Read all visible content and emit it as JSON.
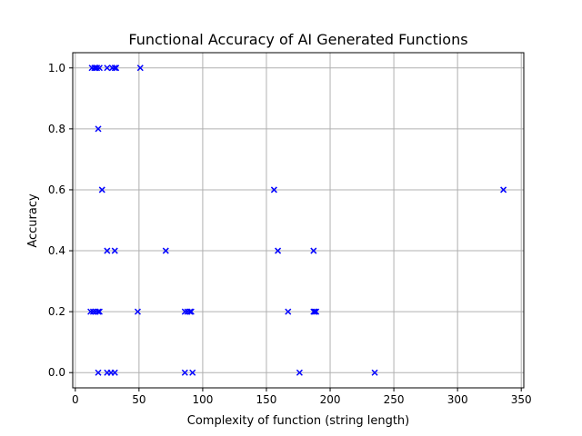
{
  "chart_data": {
    "type": "scatter",
    "title": "Functional Accuracy of AI Generated Functions",
    "xlabel": "Complexity of function (string length)",
    "ylabel": "Accuracy",
    "xlim": [
      -2,
      352
    ],
    "ylim": [
      -0.05,
      1.05
    ],
    "xticks": [
      0,
      50,
      100,
      150,
      200,
      250,
      300,
      350
    ],
    "yticks": [
      0.0,
      0.2,
      0.4,
      0.6,
      0.8,
      1.0
    ],
    "xtick_labels": [
      "0",
      "50",
      "100",
      "150",
      "200",
      "250",
      "300",
      "350"
    ],
    "ytick_labels": [
      "0.0",
      "0.2",
      "0.4",
      "0.6",
      "0.8",
      "1.0"
    ],
    "grid": true,
    "marker": "x",
    "color": "#0000ff",
    "points": [
      {
        "x": 13,
        "y": 1.0
      },
      {
        "x": 15,
        "y": 1.0
      },
      {
        "x": 16,
        "y": 1.0
      },
      {
        "x": 17,
        "y": 1.0
      },
      {
        "x": 19,
        "y": 1.0
      },
      {
        "x": 25,
        "y": 1.0
      },
      {
        "x": 29,
        "y": 1.0
      },
      {
        "x": 31,
        "y": 1.0
      },
      {
        "x": 32,
        "y": 1.0
      },
      {
        "x": 51,
        "y": 1.0
      },
      {
        "x": 18,
        "y": 0.8
      },
      {
        "x": 21,
        "y": 0.6
      },
      {
        "x": 156,
        "y": 0.6
      },
      {
        "x": 336,
        "y": 0.6
      },
      {
        "x": 25,
        "y": 0.4
      },
      {
        "x": 31,
        "y": 0.4
      },
      {
        "x": 71,
        "y": 0.4
      },
      {
        "x": 159,
        "y": 0.4
      },
      {
        "x": 187,
        "y": 0.4
      },
      {
        "x": 12,
        "y": 0.2
      },
      {
        "x": 14,
        "y": 0.2
      },
      {
        "x": 16,
        "y": 0.2
      },
      {
        "x": 18,
        "y": 0.2
      },
      {
        "x": 19,
        "y": 0.2
      },
      {
        "x": 49,
        "y": 0.2
      },
      {
        "x": 86,
        "y": 0.2
      },
      {
        "x": 88,
        "y": 0.2
      },
      {
        "x": 90,
        "y": 0.2
      },
      {
        "x": 91,
        "y": 0.2
      },
      {
        "x": 167,
        "y": 0.2
      },
      {
        "x": 187,
        "y": 0.2
      },
      {
        "x": 188,
        "y": 0.2
      },
      {
        "x": 189,
        "y": 0.2
      },
      {
        "x": 18,
        "y": 0.0
      },
      {
        "x": 25,
        "y": 0.0
      },
      {
        "x": 28,
        "y": 0.0
      },
      {
        "x": 31,
        "y": 0.0
      },
      {
        "x": 86,
        "y": 0.0
      },
      {
        "x": 92,
        "y": 0.0
      },
      {
        "x": 176,
        "y": 0.0
      },
      {
        "x": 235,
        "y": 0.0
      }
    ]
  }
}
